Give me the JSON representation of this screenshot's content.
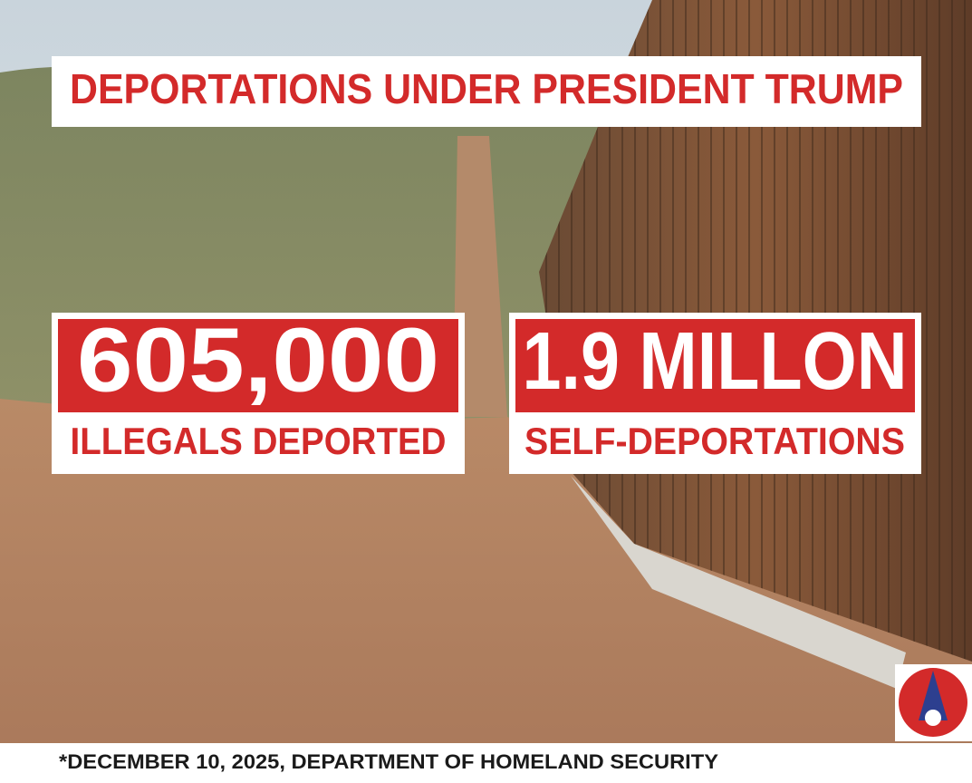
{
  "header": {
    "title": "DEPORTATIONS UNDER PRESIDENT TRUMP"
  },
  "stats": [
    {
      "value": "605,000",
      "label": "ILLEGALS DEPORTED"
    },
    {
      "value": "1.9 MILLON",
      "label": "SELF-DEPORTATIONS"
    }
  ],
  "footer": {
    "source": "*DECEMBER 10, 2025, DEPARTMENT OF HOMELAND SECURITY"
  }
}
